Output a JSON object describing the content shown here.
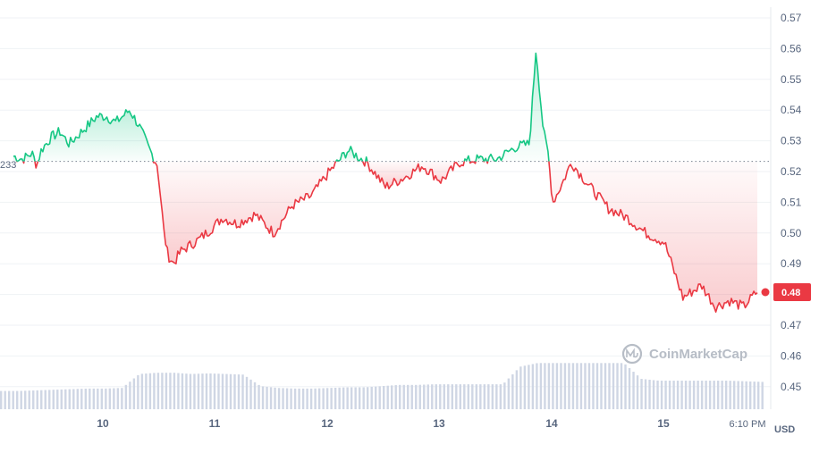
{
  "chart_data": {
    "type": "line",
    "currency_label": "USD",
    "watermark": "CoinMarketCap",
    "y_ticks": [
      "0.57",
      "0.56",
      "0.55",
      "0.54",
      "0.53",
      "0.52",
      "0.51",
      "0.50",
      "0.49",
      "0.48",
      "0.47",
      "0.46",
      "0.45"
    ],
    "ylim": [
      0.4425,
      0.5755
    ],
    "x_ticks": [
      "10",
      "11",
      "12",
      "13",
      "14",
      "15",
      "6:10 PM"
    ],
    "reference_price": 0.5233,
    "reference_label": "233",
    "current_price_label": "0.48",
    "current_price": 0.4805,
    "colors": {
      "up": "#16c784",
      "down": "#ea3943",
      "volume": "#cfd6e4",
      "grid": "#eff2f5"
    },
    "price_series": [
      [
        0.0,
        0.525
      ],
      [
        0.1,
        0.524
      ],
      [
        0.2,
        0.526
      ],
      [
        0.25,
        0.522
      ],
      [
        0.3,
        0.527
      ],
      [
        0.4,
        0.531
      ],
      [
        0.5,
        0.533
      ],
      [
        0.6,
        0.529
      ],
      [
        0.7,
        0.532
      ],
      [
        0.8,
        0.535
      ],
      [
        0.9,
        0.538
      ],
      [
        1.0,
        0.538
      ],
      [
        1.1,
        0.536
      ],
      [
        1.25,
        0.54
      ],
      [
        1.35,
        0.535
      ],
      [
        1.45,
        0.528
      ],
      [
        1.55,
        0.522
      ],
      [
        1.62,
        0.5
      ],
      [
        1.66,
        0.493
      ],
      [
        1.72,
        0.49
      ],
      [
        1.8,
        0.494
      ],
      [
        2.0,
        0.498
      ],
      [
        2.15,
        0.502
      ],
      [
        2.25,
        0.505
      ],
      [
        2.4,
        0.503
      ],
      [
        2.6,
        0.506
      ],
      [
        2.8,
        0.5
      ],
      [
        3.0,
        0.509
      ],
      [
        3.2,
        0.512
      ],
      [
        3.4,
        0.52
      ],
      [
        3.6,
        0.527
      ],
      [
        3.8,
        0.523
      ],
      [
        4.0,
        0.515
      ],
      [
        4.2,
        0.518
      ],
      [
        4.4,
        0.522
      ],
      [
        4.6,
        0.517
      ],
      [
        4.8,
        0.523
      ],
      [
        5.0,
        0.524
      ],
      [
        5.2,
        0.524
      ],
      [
        5.4,
        0.528
      ],
      [
        5.55,
        0.529
      ],
      [
        5.62,
        0.56
      ],
      [
        5.7,
        0.533
      ],
      [
        5.75,
        0.526
      ],
      [
        5.8,
        0.51
      ],
      [
        5.9,
        0.516
      ],
      [
        6.0,
        0.523
      ],
      [
        6.2,
        0.515
      ],
      [
        6.4,
        0.508
      ],
      [
        6.6,
        0.505
      ],
      [
        6.8,
        0.5
      ],
      [
        7.0,
        0.497
      ],
      [
        7.2,
        0.479
      ],
      [
        7.4,
        0.483
      ],
      [
        7.55,
        0.476
      ],
      [
        7.7,
        0.478
      ],
      [
        7.85,
        0.476
      ],
      [
        8.0,
        0.481
      ]
    ],
    "volume_series": [
      0.3,
      0.3,
      0.31,
      0.32,
      0.33,
      0.34,
      0.34,
      0.35,
      0.58,
      0.6,
      0.6,
      0.58,
      0.59,
      0.58,
      0.57,
      0.38,
      0.35,
      0.34,
      0.34,
      0.35,
      0.36,
      0.36,
      0.38,
      0.4,
      0.4,
      0.41,
      0.41,
      0.41,
      0.41,
      0.41,
      0.7,
      0.76,
      0.76,
      0.76,
      0.76,
      0.76,
      0.76,
      0.5,
      0.47,
      0.47,
      0.47,
      0.47,
      0.47,
      0.46,
      0.45
    ]
  }
}
